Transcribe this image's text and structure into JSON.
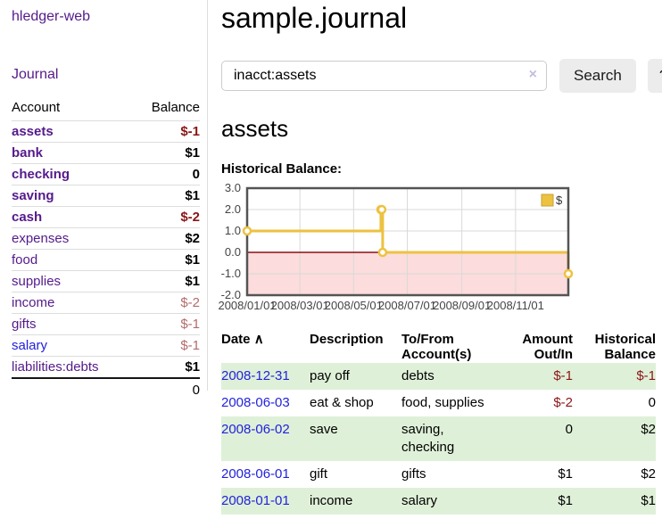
{
  "sidebar": {
    "brand": "hledger-web",
    "nav_journal": "Journal",
    "accounts_table": {
      "col_account": "Account",
      "col_balance": "Balance",
      "rows": [
        {
          "name": "assets",
          "balance": "$-1",
          "indent": 1,
          "bold": true,
          "balance_class": "neg",
          "name_class": ""
        },
        {
          "name": "bank",
          "balance": "$1",
          "indent": 2,
          "bold": true,
          "balance_class": "",
          "name_class": ""
        },
        {
          "name": "checking",
          "balance": "0",
          "indent": 3,
          "bold": true,
          "balance_class": "",
          "name_class": ""
        },
        {
          "name": "saving",
          "balance": "$1",
          "indent": 3,
          "bold": true,
          "balance_class": "",
          "name_class": ""
        },
        {
          "name": "cash",
          "balance": "$-2",
          "indent": 2,
          "bold": true,
          "balance_class": "neg",
          "name_class": ""
        },
        {
          "name": "expenses",
          "balance": "$2",
          "indent": 1,
          "bold": false,
          "balance_class": "",
          "name_class": ""
        },
        {
          "name": "food",
          "balance": "$1",
          "indent": 2,
          "bold": false,
          "balance_class": "",
          "name_class": ""
        },
        {
          "name": "supplies",
          "balance": "$1",
          "indent": 2,
          "bold": false,
          "balance_class": "",
          "name_class": ""
        },
        {
          "name": "income",
          "balance": "$-2",
          "indent": 1,
          "bold": false,
          "balance_class": "negmuted",
          "name_class": ""
        },
        {
          "name": "gifts",
          "balance": "$-1",
          "indent": 2,
          "bold": false,
          "balance_class": "negmuted",
          "name_class": ""
        },
        {
          "name": "salary",
          "balance": "$-1",
          "indent": 2,
          "bold": false,
          "balance_class": "negmuted",
          "name_class": "blue"
        },
        {
          "name": "liabilities:debts",
          "balance": "$1",
          "indent": 1,
          "bold": false,
          "balance_class": "",
          "name_class": ""
        }
      ],
      "total": "0"
    }
  },
  "main": {
    "title": "sample.journal",
    "search": {
      "value": "inacct:assets",
      "clear_icon": "×",
      "search_label": "Search",
      "help_label": "?"
    },
    "account_heading": "assets",
    "chart_heading": "Historical Balance:"
  },
  "chart_data": {
    "type": "line",
    "step": true,
    "title": "Historical Balance",
    "ylim": [
      -2,
      3
    ],
    "grid": true,
    "legend_position": "top-right",
    "y_ticks": [
      {
        "label": "3.0",
        "value": 3
      },
      {
        "label": "2.0",
        "value": 2
      },
      {
        "label": "1.0",
        "value": 1
      },
      {
        "label": "0.0",
        "value": 0
      },
      {
        "label": "-1.0",
        "value": -1
      },
      {
        "label": "-2.0",
        "value": -2
      }
    ],
    "x_ticks": [
      {
        "label": "2008/01/01",
        "day": 0
      },
      {
        "label": "2008/03/01",
        "day": 60
      },
      {
        "label": "2008/05/01",
        "day": 121
      },
      {
        "label": "2008/07/01",
        "day": 182
      },
      {
        "label": "2008/09/01",
        "day": 244
      },
      {
        "label": "2008/11/01",
        "day": 305
      }
    ],
    "x_max_day": 365,
    "series": [
      {
        "name": "$",
        "points": [
          {
            "date": "2008-01-01",
            "day": 0,
            "value": 1
          },
          {
            "date": "2008-06-01",
            "day": 152,
            "value": 2
          },
          {
            "date": "2008-06-02",
            "day": 153,
            "value": 2
          },
          {
            "date": "2008-06-03",
            "day": 154,
            "value": 0
          },
          {
            "date": "2008-12-31",
            "day": 365,
            "value": -1
          }
        ]
      }
    ],
    "colors": {
      "series": "#edc240",
      "series_edge": "#c2a138",
      "zero_line": "#8b0f0f",
      "negative_area": "#fcdcdc",
      "grid": "#d9d9d9",
      "border": "#545454",
      "tick_text": "#444444"
    }
  },
  "register_table": {
    "headers": {
      "date": "Date",
      "sort_arrow": "∧",
      "description": "Description",
      "tofrom_line1": "To/From",
      "tofrom_line2": "Account(s)",
      "amount_line1": "Amount",
      "amount_line2": "Out/In",
      "hist_line1": "Historical",
      "hist_line2": "Balance"
    },
    "rows": [
      {
        "date": "2008-12-31",
        "description": "pay off",
        "accounts": "debts",
        "amount": "$-1",
        "amount_class": "neg",
        "balance": "$-1",
        "balance_class": "neg",
        "striped": true
      },
      {
        "date": "2008-06-03",
        "description": "eat & shop",
        "accounts": "food, supplies",
        "amount": "$-2",
        "amount_class": "neg",
        "balance": "0",
        "balance_class": "",
        "striped": false
      },
      {
        "date": "2008-06-02",
        "description": "save",
        "accounts": "saving, checking",
        "amount": "0",
        "amount_class": "",
        "balance": "$2",
        "balance_class": "",
        "striped": true
      },
      {
        "date": "2008-06-01",
        "description": "gift",
        "accounts": "gifts",
        "amount": "$1",
        "amount_class": "",
        "balance": "$2",
        "balance_class": "",
        "striped": false
      },
      {
        "date": "2008-01-01",
        "description": "income",
        "accounts": "salary",
        "amount": "$1",
        "amount_class": "",
        "balance": "$1",
        "balance_class": "",
        "striped": true
      }
    ]
  },
  "colors": {
    "link_purple": "#551a8b",
    "link_blue": "#2222dd",
    "neg_strong": "#8b1515",
    "neg_muted": "#b36b6b",
    "stripe_green": "#dff0d8",
    "button_bg": "#ececec"
  }
}
